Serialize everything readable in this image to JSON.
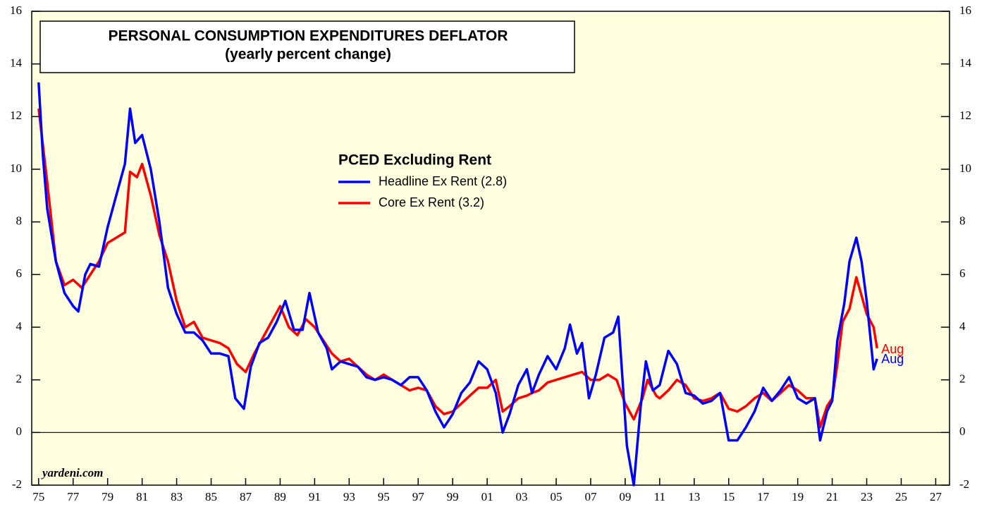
{
  "chart_data": {
    "type": "line",
    "title": "PERSONAL CONSUMPTION EXPENDITURES DEFLATOR",
    "subtitle": "(yearly percent change)",
    "legend_title": "PCED Excluding Rent",
    "source": "yardeni.com",
    "xlim": [
      1974.6,
      2027.8
    ],
    "xticks": [
      {
        "value": 1975,
        "label": "75"
      },
      {
        "value": 1977,
        "label": "77"
      },
      {
        "value": 1979,
        "label": "79"
      },
      {
        "value": 1981,
        "label": "81"
      },
      {
        "value": 1983,
        "label": "83"
      },
      {
        "value": 1985,
        "label": "85"
      },
      {
        "value": 1987,
        "label": "87"
      },
      {
        "value": 1989,
        "label": "89"
      },
      {
        "value": 1991,
        "label": "91"
      },
      {
        "value": 1993,
        "label": "93"
      },
      {
        "value": 1995,
        "label": "95"
      },
      {
        "value": 1997,
        "label": "97"
      },
      {
        "value": 1999,
        "label": "99"
      },
      {
        "value": 2001,
        "label": "01"
      },
      {
        "value": 2003,
        "label": "03"
      },
      {
        "value": 2005,
        "label": "05"
      },
      {
        "value": 2007,
        "label": "07"
      },
      {
        "value": 2009,
        "label": "09"
      },
      {
        "value": 2011,
        "label": "11"
      },
      {
        "value": 2013,
        "label": "13"
      },
      {
        "value": 2015,
        "label": "15"
      },
      {
        "value": 2017,
        "label": "17"
      },
      {
        "value": 2019,
        "label": "19"
      },
      {
        "value": 2021,
        "label": "21"
      },
      {
        "value": 2023,
        "label": "23"
      },
      {
        "value": 2025,
        "label": "25"
      },
      {
        "value": 2027,
        "label": "27"
      }
    ],
    "ylim": [
      -2,
      16
    ],
    "yticks": [
      -2,
      0,
      2,
      4,
      6,
      8,
      10,
      12,
      14,
      16
    ],
    "y2lim": [
      -2,
      16
    ],
    "y2ticks": [
      -2,
      0,
      2,
      4,
      6,
      8,
      10,
      12,
      14,
      16
    ],
    "hline": 0,
    "background": "#ffffe0",
    "series": [
      {
        "name": "Headline Ex Rent (2.8)",
        "color": "#0000ff",
        "end_label": "Aug",
        "x": [
          1975.0,
          1975.25,
          1975.5,
          1976.0,
          1976.5,
          1977.0,
          1977.3,
          1977.7,
          1978.0,
          1978.5,
          1979.0,
          1979.5,
          1980.0,
          1980.3,
          1980.6,
          1981.0,
          1981.5,
          1982.0,
          1982.5,
          1983.0,
          1983.5,
          1984.0,
          1984.5,
          1985.0,
          1985.5,
          1986.0,
          1986.4,
          1986.9,
          1987.3,
          1987.8,
          1988.3,
          1988.8,
          1989.3,
          1989.8,
          1990.3,
          1990.7,
          1991.2,
          1991.7,
          1992.0,
          1992.5,
          1993.0,
          1993.5,
          1994.0,
          1994.5,
          1995.0,
          1995.5,
          1996.0,
          1996.5,
          1997.0,
          1997.5,
          1998.0,
          1998.5,
          1999.0,
          1999.5,
          2000.0,
          2000.5,
          2001.0,
          2001.5,
          2001.9,
          2002.3,
          2002.8,
          2003.3,
          2003.6,
          2004.0,
          2004.5,
          2005.0,
          2005.5,
          2005.8,
          2006.2,
          2006.5,
          2006.9,
          2007.3,
          2007.8,
          2008.3,
          2008.6,
          2008.9,
          2009.1,
          2009.5,
          2009.9,
          2010.2,
          2010.6,
          2011.0,
          2011.5,
          2012.0,
          2012.5,
          2013.0,
          2013.5,
          2014.0,
          2014.5,
          2015.0,
          2015.5,
          2016.0,
          2016.5,
          2017.0,
          2017.5,
          2018.0,
          2018.5,
          2019.0,
          2019.5,
          2020.0,
          2020.3,
          2020.7,
          2021.0,
          2021.3,
          2021.7,
          2022.0,
          2022.4,
          2022.7,
          2023.0,
          2023.4,
          2023.6
        ],
        "values": [
          13.3,
          10.5,
          8.5,
          6.5,
          5.3,
          4.8,
          4.6,
          6.0,
          6.4,
          6.3,
          7.8,
          9.0,
          10.2,
          12.3,
          11.0,
          11.3,
          10.0,
          8.0,
          5.5,
          4.5,
          3.8,
          3.8,
          3.5,
          3.0,
          3.0,
          2.9,
          1.3,
          0.9,
          2.5,
          3.4,
          3.6,
          4.2,
          5.0,
          3.9,
          3.9,
          5.3,
          3.8,
          3.2,
          2.4,
          2.7,
          2.6,
          2.5,
          2.1,
          2.0,
          2.1,
          2.0,
          1.8,
          2.1,
          2.1,
          1.6,
          0.8,
          0.2,
          0.7,
          1.5,
          1.9,
          2.7,
          2.4,
          1.5,
          0.0,
          0.7,
          1.8,
          2.4,
          1.5,
          2.2,
          2.9,
          2.4,
          3.2,
          4.1,
          3.0,
          3.4,
          1.3,
          2.2,
          3.6,
          3.8,
          4.4,
          1.5,
          -0.5,
          -2.0,
          1.0,
          2.7,
          1.6,
          1.8,
          3.1,
          2.6,
          1.5,
          1.4,
          1.1,
          1.2,
          1.5,
          -0.3,
          -0.3,
          0.2,
          0.8,
          1.7,
          1.2,
          1.6,
          2.1,
          1.3,
          1.1,
          1.3,
          -0.3,
          0.8,
          1.2,
          3.5,
          4.9,
          6.5,
          7.4,
          6.5,
          5.0,
          2.4,
          2.8
        ]
      },
      {
        "name": "Core Ex Rent (3.2)",
        "color": "#ff0000",
        "end_label": "Aug",
        "x": [
          1975.0,
          1975.5,
          1976.0,
          1976.5,
          1977.0,
          1977.5,
          1978.0,
          1978.5,
          1979.0,
          1979.5,
          1980.0,
          1980.3,
          1980.7,
          1981.0,
          1981.5,
          1982.0,
          1982.5,
          1983.0,
          1983.5,
          1984.0,
          1984.5,
          1985.0,
          1985.5,
          1986.0,
          1986.5,
          1987.0,
          1987.5,
          1988.0,
          1988.5,
          1989.0,
          1989.5,
          1990.0,
          1990.5,
          1991.0,
          1991.5,
          1992.0,
          1992.5,
          1993.0,
          1993.5,
          1994.0,
          1994.5,
          1995.0,
          1995.5,
          1996.0,
          1996.5,
          1997.0,
          1997.5,
          1998.0,
          1998.5,
          1999.0,
          1999.5,
          2000.0,
          2000.5,
          2001.0,
          2001.5,
          2001.9,
          2002.3,
          2002.8,
          2003.3,
          2003.6,
          2004.0,
          2004.5,
          2005.0,
          2005.5,
          2006.0,
          2006.5,
          2007.0,
          2007.5,
          2008.0,
          2008.5,
          2009.0,
          2009.5,
          2010.0,
          2010.3,
          2010.8,
          2011.0,
          2011.5,
          2012.0,
          2012.5,
          2013.0,
          2013.5,
          2014.0,
          2014.5,
          2015.0,
          2015.5,
          2016.0,
          2016.5,
          2017.0,
          2017.5,
          2018.0,
          2018.5,
          2019.0,
          2019.5,
          2020.0,
          2020.3,
          2020.7,
          2021.0,
          2021.3,
          2021.6,
          2022.0,
          2022.4,
          2022.7,
          2023.0,
          2023.4,
          2023.6
        ],
        "values": [
          12.3,
          9.5,
          6.5,
          5.6,
          5.8,
          5.5,
          6.0,
          6.5,
          7.2,
          7.4,
          7.6,
          9.9,
          9.7,
          10.2,
          9.0,
          7.5,
          6.5,
          5.0,
          4.0,
          4.2,
          3.6,
          3.5,
          3.4,
          3.2,
          2.6,
          2.3,
          3.0,
          3.6,
          4.2,
          4.8,
          4.0,
          3.7,
          4.3,
          4.0,
          3.5,
          3.0,
          2.7,
          2.8,
          2.5,
          2.2,
          2.0,
          2.2,
          2.0,
          1.8,
          1.6,
          1.7,
          1.6,
          1.0,
          0.7,
          0.8,
          1.1,
          1.4,
          1.7,
          1.7,
          2.0,
          0.8,
          1.0,
          1.3,
          1.4,
          1.5,
          1.6,
          1.9,
          2.0,
          2.1,
          2.2,
          2.3,
          2.0,
          2.0,
          2.2,
          2.0,
          1.1,
          0.5,
          1.3,
          2.0,
          1.4,
          1.3,
          1.6,
          2.0,
          1.8,
          1.3,
          1.2,
          1.3,
          1.5,
          0.9,
          0.8,
          1.0,
          1.3,
          1.5,
          1.2,
          1.5,
          1.8,
          1.6,
          1.3,
          1.3,
          0.2,
          1.0,
          1.3,
          2.6,
          4.2,
          4.7,
          5.9,
          5.2,
          4.5,
          4.0,
          3.2
        ]
      }
    ]
  }
}
